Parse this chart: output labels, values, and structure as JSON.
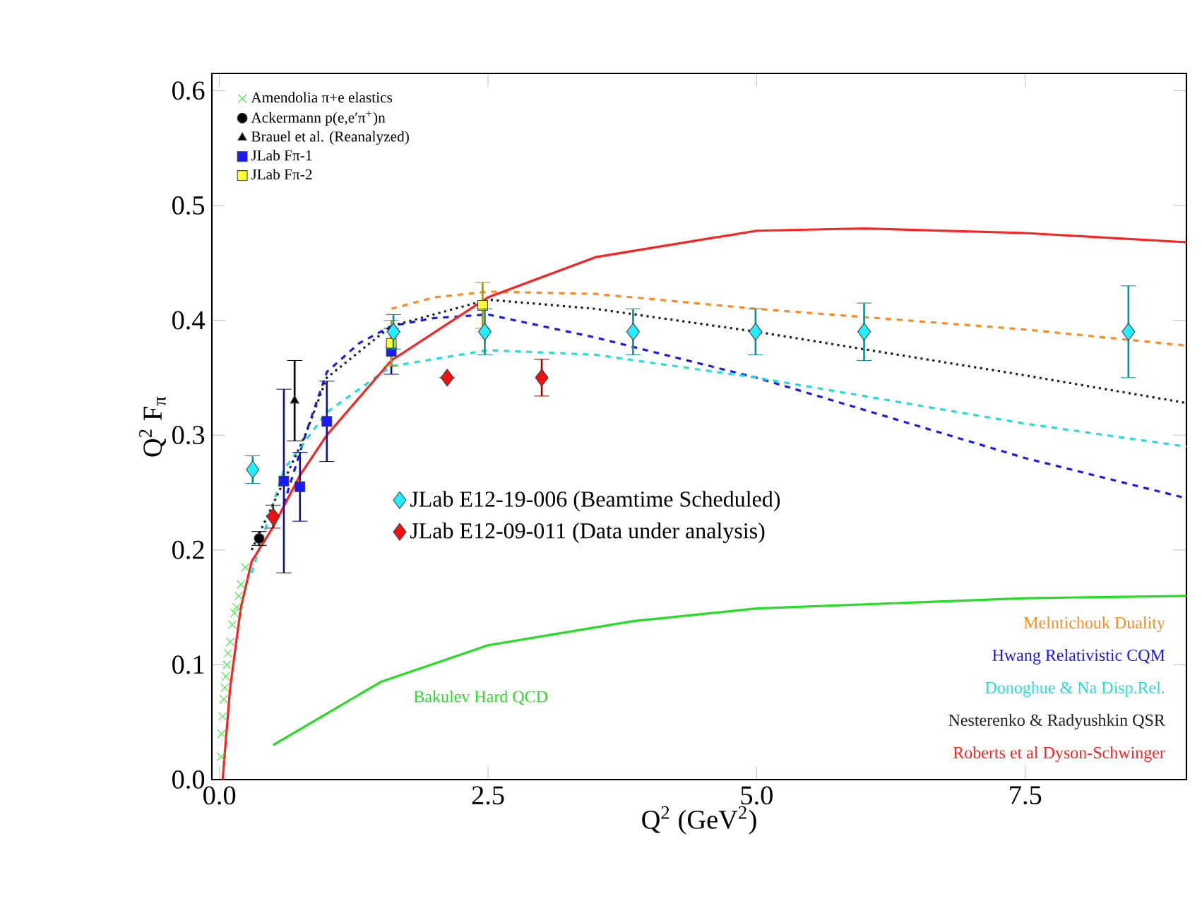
{
  "chart_data": {
    "type": "scatter",
    "xlabel": "Q$^{2}$ (GeV$^{2}$)",
    "ylabel": "Q$^{2}$ F$_{π}$",
    "xlim": [
      -0.07,
      9.0
    ],
    "ylim": [
      0.0,
      0.615
    ],
    "xticks": [
      {
        "value": 0,
        "label": "0.0"
      },
      {
        "value": 2.5,
        "label": "2.5"
      },
      {
        "value": 5,
        "label": "5.0"
      },
      {
        "value": 7.5,
        "label": "7.5"
      }
    ],
    "yticks": [
      {
        "value": 0,
        "label": "0.0"
      },
      {
        "value": 0.1,
        "label": "0.1"
      },
      {
        "value": 0.2,
        "label": "0.2"
      },
      {
        "value": 0.3,
        "label": "0.3"
      },
      {
        "value": 0.4,
        "label": "0.4"
      },
      {
        "value": 0.5,
        "label": "0.5"
      },
      {
        "value": 0.6,
        "label": "0.6"
      }
    ],
    "legend": "top left",
    "series": [
      {
        "type": "line",
        "name": "Bakulev Hard QCD",
        "color": "#22dd22",
        "line_style": "solid",
        "x": [
          0.5,
          1.5,
          2.5,
          3.85,
          5.0,
          7.5,
          9.0
        ],
        "values": [
          0.03,
          0.085,
          0.117,
          0.138,
          0.149,
          0.158,
          0.16
        ]
      },
      {
        "type": "line",
        "name": "Melntichouk Duality",
        "color": "#ff8a20",
        "line_style": "dashed",
        "x": [
          1.6,
          2.0,
          2.5,
          3.5,
          5.0,
          7.5,
          9.0
        ],
        "values": [
          0.41,
          0.42,
          0.425,
          0.423,
          0.41,
          0.392,
          0.378
        ]
      },
      {
        "type": "line",
        "name": "Hwang Relativistic CQM",
        "color": "#1a1aee",
        "line_style": "dashed",
        "x": [
          0.6,
          0.8,
          1.0,
          1.3,
          1.6,
          2.0,
          2.5,
          3.5,
          5.0,
          7.5,
          9.0
        ],
        "values": [
          0.24,
          0.3,
          0.355,
          0.38,
          0.395,
          0.402,
          0.405,
          0.385,
          0.35,
          0.28,
          0.245
        ]
      },
      {
        "type": "line",
        "name": "Donoghue & Na Disp.Rel.",
        "color": "#22dddd",
        "line_style": "dashed",
        "x": [
          0.3,
          0.6,
          1.0,
          1.6,
          2.5,
          3.5,
          5.0,
          7.5,
          9.0
        ],
        "values": [
          0.18,
          0.27,
          0.32,
          0.36,
          0.374,
          0.37,
          0.35,
          0.31,
          0.29
        ]
      },
      {
        "type": "line",
        "name": "Nesterenko & Radyushkin QSR",
        "color": "#222222",
        "line_style": "dotted",
        "x": [
          0.3,
          0.6,
          0.8,
          1.0,
          1.6,
          2.5,
          3.5,
          5.0,
          7.5,
          9.0
        ],
        "values": [
          0.2,
          0.26,
          0.3,
          0.35,
          0.395,
          0.418,
          0.41,
          0.39,
          0.352,
          0.328
        ]
      },
      {
        "type": "line",
        "name": "Roberts et al Dyson-Schwinger",
        "color": "#ff2020",
        "line_style": "solid",
        "x": [
          0.03,
          0.1,
          0.2,
          0.3,
          0.5,
          0.75,
          1.0,
          1.6,
          2.5,
          3.5,
          5.0,
          6.0,
          7.5,
          9.0
        ],
        "values": [
          0.0,
          0.08,
          0.15,
          0.19,
          0.22,
          0.265,
          0.3,
          0.365,
          0.42,
          0.455,
          0.478,
          0.48,
          0.476,
          0.468
        ]
      },
      {
        "name": "Amendolia π+e elastics",
        "color": "#33ee33",
        "marker": "cross",
        "x": [
          0.015,
          0.02,
          0.03,
          0.04,
          0.05,
          0.06,
          0.07,
          0.08,
          0.1,
          0.12,
          0.14,
          0.16,
          0.18,
          0.2,
          0.24
        ],
        "values": [
          0.02,
          0.04,
          0.055,
          0.07,
          0.08,
          0.09,
          0.1,
          0.11,
          0.12,
          0.135,
          0.145,
          0.15,
          0.16,
          0.17,
          0.185
        ]
      },
      {
        "name": "Ackermann p(e,e′π$^{+}$)n",
        "color": "#000000",
        "marker": "circle",
        "x": [
          0.37
        ],
        "values": [
          0.21
        ],
        "errors": [
          0.006
        ]
      },
      {
        "name": "Brauel et al. (Reanalyzed)",
        "color": "#000000",
        "marker": "triangle",
        "x": [
          0.7
        ],
        "values": [
          0.33
        ],
        "errors": [
          0.035
        ]
      },
      {
        "name": "JLab Fπ-1",
        "color": "#1a1aff",
        "marker": "square",
        "x": [
          0.6,
          0.75,
          1.0,
          1.6
        ],
        "values": [
          0.26,
          0.255,
          0.312,
          0.373
        ],
        "errors": [
          0.08,
          0.03,
          0.035,
          0.02
        ]
      },
      {
        "name": "JLab Fπ-2",
        "color": "#ffff33",
        "marker": "square",
        "x": [
          1.6,
          2.45
        ],
        "values": [
          0.38,
          0.413
        ],
        "errors": [
          0.02,
          0.02
        ]
      },
      {
        "name": "JLab E12-19-006 (Beamtime Scheduled)",
        "color": "#22eeff",
        "marker": "diamond",
        "x": [
          0.31,
          1.62,
          2.47,
          3.85,
          4.99,
          6.0,
          8.46
        ],
        "values": [
          0.27,
          0.39,
          0.39,
          0.39,
          0.39,
          0.39,
          0.39
        ],
        "errors": [
          0.012,
          0.015,
          0.02,
          0.02,
          0.02,
          0.025,
          0.04
        ]
      },
      {
        "name": "JLab E12-09-011 (Data under analysis)",
        "color": "#ee1111",
        "marker": "diamond",
        "x": [
          0.5,
          2.12,
          3.0
        ],
        "values": [
          0.229,
          0.35,
          0.35
        ],
        "errors": [
          0.01,
          null,
          0.016
        ]
      }
    ]
  }
}
